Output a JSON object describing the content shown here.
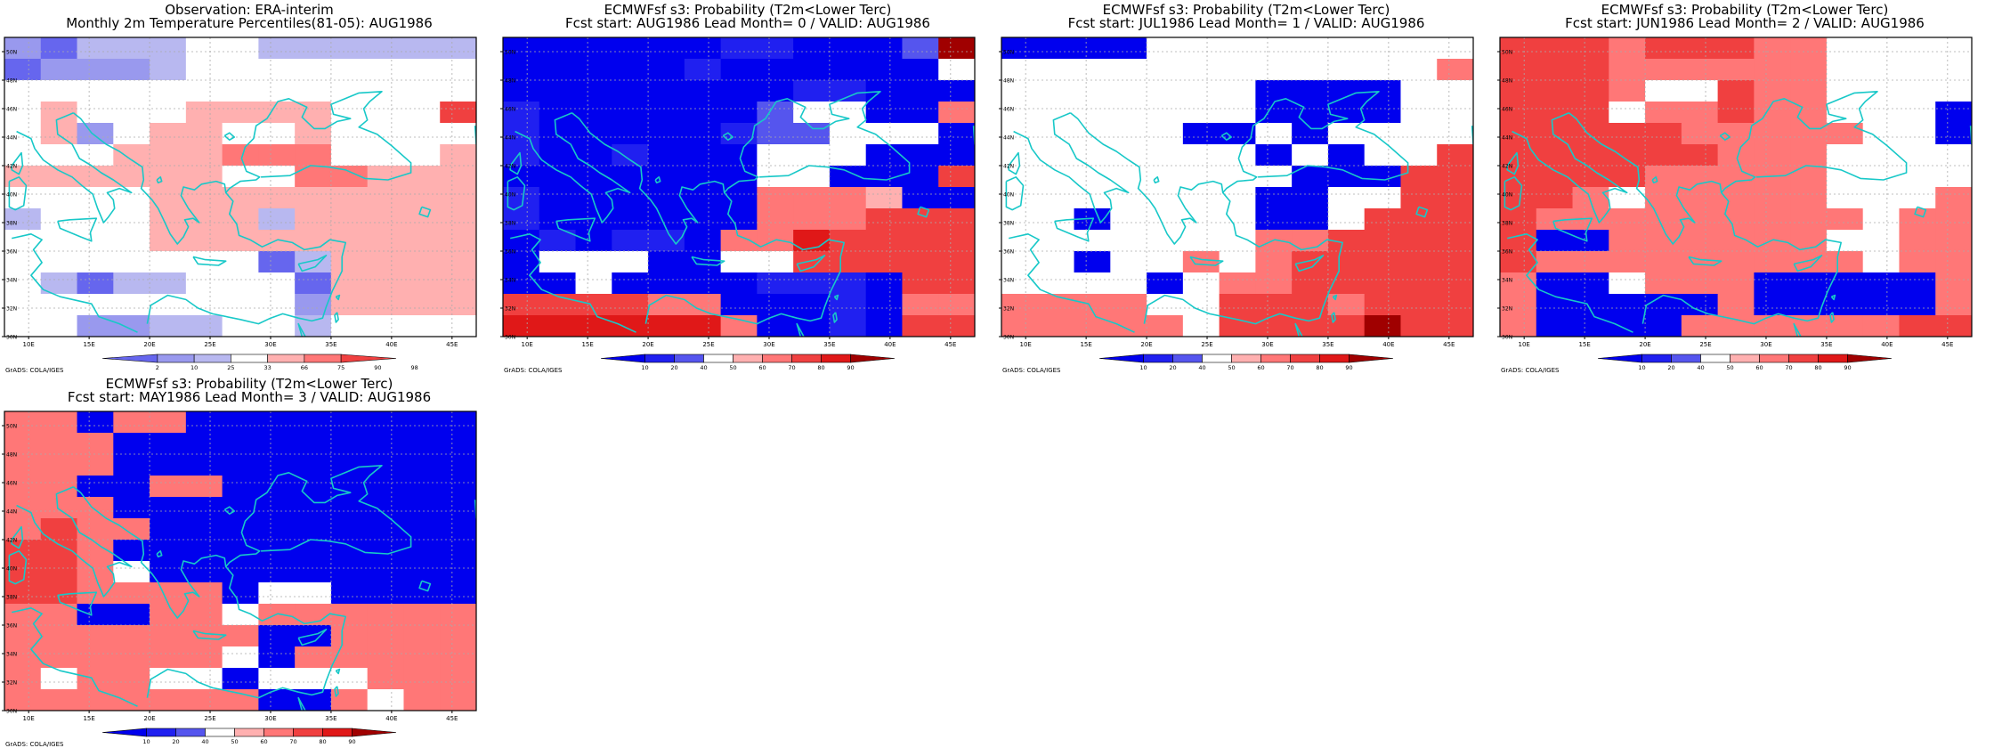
{
  "panels": [
    {
      "title_line1": "Observation: ERA-interim",
      "title_line2": "Monthly 2m Temperature Percentiles(81-05): AUG1986",
      "legend_levels": [
        "2",
        "10",
        "25",
        "33",
        "66",
        "75",
        "90",
        "98"
      ],
      "colors": [
        "#6666ee",
        "#9999ee",
        "#b8b8f0",
        "#ffffff",
        "#ffb0b0",
        "#ff7777",
        "#f04040"
      ],
      "grid": [
        "1022233222222",
        "0111233333333",
        "3333333333333",
        "3433344443336",
        "3413443343333",
        "3334445553334",
        "4444443355444",
        "3333444444444",
        "2333444244444",
        "3333444444444",
        "3333333024444",
        "3202233304444",
        "3333333314444",
        "3311223323333"
      ]
    },
    {
      "title_line1": "ECMWFsf s3: Probability (T2m<Lower Terc)",
      "title_line2": "Fcst start: AUG1986   Lead Month= 0 / VALID: AUG1986",
      "legend_levels": [
        "10",
        "20",
        "40",
        "50",
        "60",
        "70",
        "80",
        "90"
      ],
      "colors": [
        "#0000ee",
        "#2020f0",
        "#5555ee",
        "#ffffff",
        "#ffb0b0",
        "#ff7777",
        "#f04040",
        "#e01818",
        "#a00000"
      ],
      "grid": [
        "0000001100028",
        "0000010000003",
        "0000000011000",
        "1000000233005",
        "1000001223330",
        "1001000333000",
        "0000000330006",
        "1000000555400",
        "1000000555666",
        "0101105576666",
        "0333003366666",
        "0030000111066",
        "6666550001055",
        "7777775001066"
      ]
    },
    {
      "title_line1": "ECMWFsf s3: Probability (T2m<Lower Terc)",
      "title_line2": "Fcst start: JUL1986   Lead Month= 1 / VALID: AUG1986",
      "legend_levels": [
        "10",
        "20",
        "40",
        "50",
        "60",
        "70",
        "80",
        "90"
      ],
      "colors": [
        "#0000ee",
        "#2020f0",
        "#5555ee",
        "#ffffff",
        "#ffb0b0",
        "#ff7777",
        "#f04040",
        "#e01818",
        "#a00000"
      ],
      "grid": [
        "0000333333333",
        "3333333333335",
        "3333333000033",
        "3333333000033",
        "3333300303333",
        "3333333030336",
        "3333333300066",
        "3333333003366",
        "3303333003666",
        "3333333556666",
        "3303353566666",
        "3333035566666",
        "5555336665666",
        "5555536666866"
      ]
    },
    {
      "title_line1": "ECMWFsf s3: Probability (T2m<Lower Terc)",
      "title_line2": "Fcst start: JUN1986   Lead Month= 2 / VALID: AUG1986",
      "legend_levels": [
        "10",
        "20",
        "40",
        "50",
        "60",
        "70",
        "80",
        "90"
      ],
      "colors": [
        "#0000ee",
        "#2020f0",
        "#5555ee",
        "#ffffff",
        "#ffb0b0",
        "#ff7777",
        "#f04040",
        "#e01818",
        "#a00000"
      ],
      "grid": [
        "6665666553333",
        "6665555553333",
        "6665336553333",
        "6663556553330",
        "6666655555330",
        "6666665553333",
        "6666555553333",
        "6653555553335",
        "6555555555355",
        "6005555553355",
        "6555555555355",
        "5003555000005",
        "5000005000005",
        "5000055555566"
      ]
    },
    {
      "title_line1": "ECMWFsf s3: Probability (T2m<Lower Terc)",
      "title_line2": "Fcst start: MAY1986   Lead Month= 3 / VALID: AUG1986",
      "legend_levels": [
        "10",
        "20",
        "40",
        "50",
        "60",
        "70",
        "80",
        "90"
      ],
      "colors": [
        "#0000ee",
        "#2020f0",
        "#5555ee",
        "#ffffff",
        "#ffb0b0",
        "#ff7777",
        "#f04040",
        "#e01818",
        "#a00000"
      ],
      "grid": [
        "5505500000000",
        "5550000000000",
        "5550000000000",
        "5500550000000",
        "5550000000000",
        "5655000000000",
        "6650000000000",
        "6653000000000",
        "6655550330000",
        "5500553555555",
        "5555555005555",
        "5555553055555",
        "5355330333555",
        "5555555005355"
      ]
    }
  ],
  "x_ticks": [
    "10E",
    "15E",
    "20E",
    "25E",
    "30E",
    "35E",
    "40E",
    "45E"
  ],
  "y_ticks": [
    "30N",
    "32N",
    "34N",
    "36N",
    "38N",
    "40N",
    "42N",
    "44N",
    "46N",
    "48N",
    "50N"
  ],
  "credit": "GrADS: COLA/IGES"
}
